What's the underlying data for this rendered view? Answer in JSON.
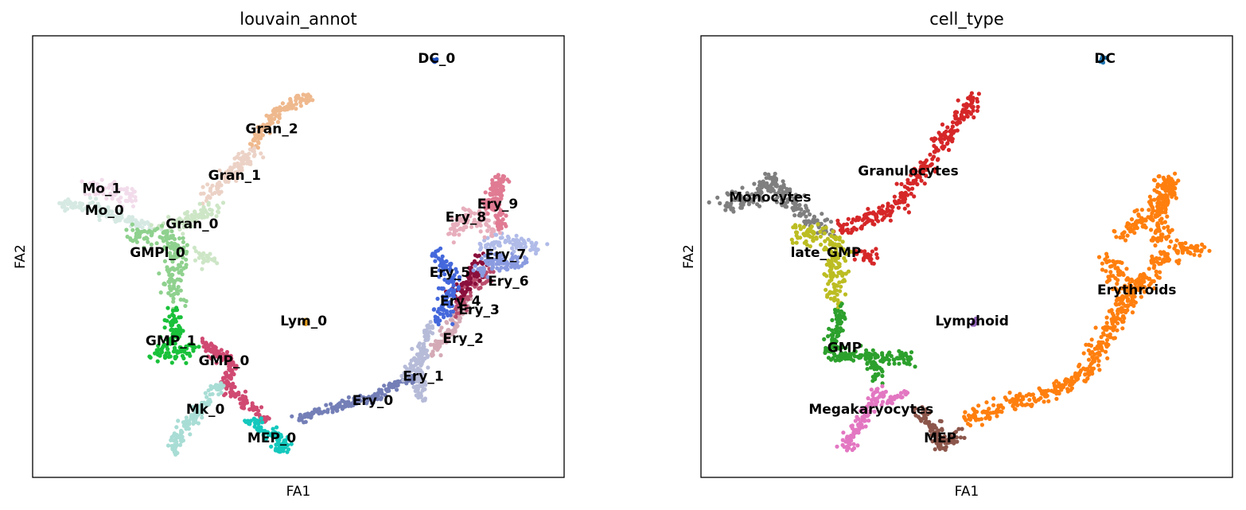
{
  "chart_data": [
    {
      "type": "scatter",
      "title": "louvain_annot",
      "xlabel": "FA1",
      "ylabel": "FA2",
      "xlim": [
        0,
        100
      ],
      "ylim": [
        0,
        100
      ],
      "grid": false,
      "clusters": [
        {
          "name": "DC_0",
          "color": "#1f4fbf",
          "label_at": [
            76,
            95
          ],
          "segments": [
            [
              [
                75.5,
                94.2
              ],
              [
                75.7,
                94.8
              ]
            ]
          ],
          "spread": 0.5
        },
        {
          "name": "Gran_2",
          "color": "#efb98e",
          "label_at": [
            45,
            79
          ],
          "segments": [
            [
              [
                41,
                75
              ],
              [
                46,
                83
              ],
              [
                52,
                86
              ],
              [
                52,
                86
              ]
            ]
          ],
          "spread": 1.2
        },
        {
          "name": "Gran_1",
          "color": "#ecd2c6",
          "label_at": [
            38,
            68.5
          ],
          "segments": [
            [
              [
                33,
                64
              ],
              [
                38,
                69
              ],
              [
                42,
                74
              ]
            ]
          ],
          "spread": 1.5
        },
        {
          "name": "Mo_1",
          "color": "#f2dceb",
          "label_at": [
            13,
            65.5
          ],
          "segments": [
            [
              [
                11,
                66
              ],
              [
                16,
                65
              ],
              [
                19,
                63
              ]
            ]
          ],
          "spread": 1.8
        },
        {
          "name": "Mo_0",
          "color": "#d6e9e3",
          "label_at": [
            13.5,
            60.5
          ],
          "segments": [
            [
              [
                5,
                62
              ],
              [
                12,
                61
              ],
              [
                18,
                58
              ],
              [
                23,
                56
              ]
            ]
          ],
          "spread": 1.2
        },
        {
          "name": "Gran_0",
          "color": "#cde6c6",
          "label_at": [
            30,
            57.5
          ],
          "segments": [
            [
              [
                24,
                56
              ],
              [
                30,
                59
              ],
              [
                34,
                61
              ]
            ],
            [
              [
                31,
                51
              ],
              [
                34,
                49
              ]
            ]
          ],
          "spread": 1.8
        },
        {
          "name": "GMPl_0",
          "color": "#8fd18e",
          "label_at": [
            23.5,
            51
          ],
          "segments": [
            [
              [
                18,
                55
              ],
              [
                25,
                55
              ],
              [
                28,
                52
              ],
              [
                26,
                46
              ],
              [
                27,
                40
              ]
            ]
          ],
          "spread": 1.9
        },
        {
          "name": "GMP_1",
          "color": "#19c13a",
          "label_at": [
            26,
            31
          ],
          "segments": [
            [
              [
                26,
                38
              ],
              [
                27,
                33
              ],
              [
                24,
                28
              ],
              [
                29,
                28
              ],
              [
                30,
                30
              ]
            ]
          ],
          "spread": 1.6
        },
        {
          "name": "GMP_0",
          "color": "#d04a72",
          "label_at": [
            36,
            26.5
          ],
          "segments": [
            [
              [
                31,
                31
              ],
              [
                35,
                28
              ],
              [
                38,
                26
              ],
              [
                36,
                21
              ],
              [
                40,
                17
              ],
              [
                44,
                13
              ]
            ]
          ],
          "spread": 1.0
        },
        {
          "name": "Lym_0",
          "color": "#e8a020",
          "label_at": [
            51,
            35.5
          ],
          "segments": [
            [
              [
                51.3,
                34.5
              ],
              [
                51.3,
                35.5
              ]
            ]
          ],
          "spread": 0.4
        },
        {
          "name": "Mk_0",
          "color": "#a8ddd5",
          "label_at": [
            32.5,
            15.5
          ],
          "segments": [
            [
              [
                35,
                21
              ],
              [
                31,
                14
              ],
              [
                27,
                9
              ],
              [
                27,
                5
              ]
            ]
          ],
          "spread": 1.2
        },
        {
          "name": "MEP_0",
          "color": "#14c8bd",
          "label_at": [
            45,
            9
          ],
          "segments": [
            [
              [
                41,
                13
              ],
              [
                44,
                10
              ],
              [
                47,
                9
              ],
              [
                46,
                6
              ],
              [
                48,
                7
              ]
            ]
          ],
          "spread": 1.3
        },
        {
          "name": "Ery_0",
          "color": "#747fb7",
          "label_at": [
            64,
            17.5
          ],
          "segments": [
            [
              [
                50,
                13
              ],
              [
                57,
                16
              ],
              [
                64,
                18
              ],
              [
                68,
                21
              ],
              [
                72,
                23
              ]
            ]
          ],
          "spread": 0.9
        },
        {
          "name": "Ery_1",
          "color": "#b6bbd8",
          "label_at": [
            73.5,
            23
          ],
          "segments": [
            [
              [
                70,
                23
              ],
              [
                73,
                27
              ],
              [
                74,
                31
              ],
              [
                75,
                35
              ]
            ],
            [
              [
                73,
                25
              ],
              [
                73,
                18
              ]
            ]
          ],
          "spread": 1.0
        },
        {
          "name": "Ery_2",
          "color": "#d4aab6",
          "label_at": [
            81,
            31.5
          ],
          "segments": [
            [
              [
                75,
                28
              ],
              [
                78,
                32
              ],
              [
                80,
                37
              ],
              [
                82,
                41
              ]
            ]
          ],
          "spread": 1.1
        },
        {
          "name": "Ery_3",
          "color": "#ba4d6e",
          "label_at": [
            84,
            38
          ],
          "segments": [
            [
              [
                80,
                38
              ],
              [
                82,
                43
              ],
              [
                84,
                45
              ],
              [
                86,
                47
              ]
            ]
          ],
          "spread": 1.6
        },
        {
          "name": "Ery_4",
          "color": "#8a0f3c",
          "label_at": [
            80.5,
            40
          ],
          "segments": [
            [
              [
                80,
                41
              ],
              [
                82,
                44
              ],
              [
                83,
                47
              ],
              [
                85,
                50
              ]
            ]
          ],
          "spread": 1.7
        },
        {
          "name": "Ery_5",
          "color": "#4468dc",
          "label_at": [
            78.5,
            46.5
          ],
          "segments": [
            [
              [
                76,
                51
              ],
              [
                78,
                47
              ],
              [
                79,
                44
              ],
              [
                78,
                40
              ],
              [
                76,
                35
              ]
            ]
          ],
          "spread": 1.6
        },
        {
          "name": "Ery_6",
          "color": "#8a9be0",
          "label_at": [
            89.5,
            44.5
          ],
          "segments": [
            [
              [
                84,
                46
              ],
              [
                87,
                50
              ],
              [
                90,
                48
              ],
              [
                93,
                50
              ]
            ]
          ],
          "spread": 1.6
        },
        {
          "name": "Ery_7",
          "color": "#b0bbe8",
          "label_at": [
            89,
            50.5
          ],
          "segments": [
            [
              [
                85,
                52
              ],
              [
                89,
                54
              ],
              [
                93,
                52
              ],
              [
                95,
                53
              ]
            ]
          ],
          "spread": 1.5
        },
        {
          "name": "Ery_8",
          "color": "#e7aebc",
          "label_at": [
            81.5,
            59
          ],
          "segments": [
            [
              [
                79,
                55
              ],
              [
                82,
                60
              ],
              [
                85,
                58
              ],
              [
                87,
                55
              ]
            ]
          ],
          "spread": 1.6
        },
        {
          "name": "Ery_9",
          "color": "#e07b93",
          "label_at": [
            87.5,
            62
          ],
          "segments": [
            [
              [
                85,
                61
              ],
              [
                87,
                64
              ],
              [
                88,
                68
              ],
              [
                87,
                62
              ],
              [
                88,
                56
              ]
            ]
          ],
          "spread": 1.2
        }
      ]
    },
    {
      "type": "scatter",
      "title": "cell_type",
      "xlabel": "FA1",
      "ylabel": "FA2",
      "xlim": [
        0,
        100
      ],
      "ylim": [
        0,
        100
      ],
      "grid": false,
      "clusters": [
        {
          "name": "DC",
          "color": "#1f77b4",
          "label_at": [
            76,
            95
          ],
          "segments": [
            [
              [
                75.5,
                94.2
              ],
              [
                75.7,
                94.8
              ]
            ]
          ],
          "spread": 0.5
        },
        {
          "name": "Granulocytes",
          "color": "#d62728",
          "label_at": [
            39,
            69.5
          ],
          "segments": [
            [
              [
                26,
                56
              ],
              [
                32,
                59
              ],
              [
                37,
                62
              ],
              [
                41,
                68
              ],
              [
                46,
                77
              ],
              [
                51,
                85
              ],
              [
                52,
                86
              ]
            ],
            [
              [
                29,
                51
              ],
              [
                32,
                49
              ]
            ]
          ],
          "spread": 1.6
        },
        {
          "name": "Monocytes",
          "color": "#7f7f7f",
          "label_at": [
            13,
            63.5
          ],
          "segments": [
            [
              [
                4,
                62
              ],
              [
                10,
                63
              ],
              [
                13,
                68
              ],
              [
                16,
                63
              ],
              [
                20,
                59
              ],
              [
                24,
                56
              ]
            ]
          ],
          "spread": 1.8
        },
        {
          "name": "late_GMP",
          "color": "#bcbd22",
          "label_at": [
            23.5,
            51
          ],
          "segments": [
            [
              [
                17,
                55
              ],
              [
                24,
                55
              ],
              [
                26,
                50
              ],
              [
                25,
                45
              ],
              [
                26,
                40
              ]
            ]
          ],
          "spread": 1.9
        },
        {
          "name": "GMP",
          "color": "#2ca02c",
          "label_at": [
            27,
            29.5
          ],
          "segments": [
            [
              [
                26,
                38
              ],
              [
                26,
                33
              ],
              [
                24,
                28
              ],
              [
                29,
                28
              ],
              [
                33,
                27
              ],
              [
                37,
                27
              ],
              [
                40,
                27
              ]
            ],
            [
              [
                32,
                26
              ],
              [
                34,
                22
              ]
            ]
          ],
          "spread": 1.5
        },
        {
          "name": "Lymphoid",
          "color": "#9467bd",
          "label_at": [
            51,
            35.5
          ],
          "segments": [
            [
              [
                51.3,
                34.5
              ],
              [
                51.3,
                35.5
              ]
            ]
          ],
          "spread": 0.4
        },
        {
          "name": "Megakaryocytes",
          "color": "#e377c2",
          "label_at": [
            32,
            15.5
          ],
          "segments": [
            [
              [
                34,
                20
              ],
              [
                31,
                14
              ],
              [
                28,
                9
              ],
              [
                27,
                6
              ]
            ],
            [
              [
                35,
                17
              ],
              [
                38,
                19
              ]
            ]
          ],
          "spread": 1.2
        },
        {
          "name": "MEP",
          "color": "#8c564b",
          "label_at": [
            45,
            9
          ],
          "segments": [
            [
              [
                41,
                15
              ],
              [
                44,
                11
              ],
              [
                45,
                7
              ],
              [
                47,
                8
              ],
              [
                49,
                10
              ]
            ]
          ],
          "spread": 1.3
        },
        {
          "name": "Erythroids",
          "color": "#ff7f0e",
          "label_at": [
            82,
            42.5
          ],
          "segments": [
            [
              [
                50,
                13
              ],
              [
                57,
                16
              ],
              [
                63,
                18
              ],
              [
                69,
                21
              ],
              [
                73,
                24
              ],
              [
                75,
                31
              ],
              [
                79,
                37
              ],
              [
                82,
                43
              ],
              [
                86,
                49
              ],
              [
                91,
                52
              ],
              [
                95,
                51
              ]
            ],
            [
              [
                79,
                55
              ],
              [
                83,
                58
              ],
              [
                87,
                64
              ],
              [
                88,
                68
              ],
              [
                87,
                60
              ],
              [
                86,
                53
              ]
            ],
            [
              [
                76,
                50
              ],
              [
                79,
                45
              ],
              [
                80,
                40
              ]
            ]
          ],
          "spread": 1.8
        }
      ]
    }
  ]
}
